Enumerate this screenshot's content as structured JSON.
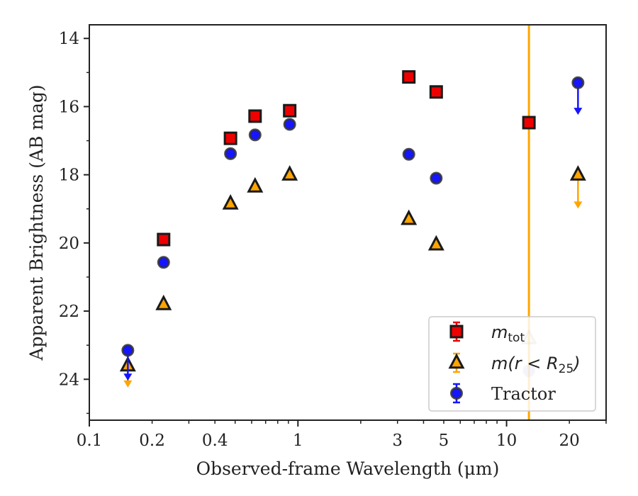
{
  "chart_data": {
    "type": "scatter",
    "xlabel": "Observed-frame Wavelength (μm)",
    "ylabel": "Apparent Brightness (AB mag)",
    "xscale": "log",
    "xlim": [
      0.1,
      30
    ],
    "ylim": [
      25.2,
      13.6
    ],
    "y_inverted": true,
    "x_ticks": [
      {
        "value": 0.1,
        "label": "0.1"
      },
      {
        "value": 0.2,
        "label": "0.2"
      },
      {
        "value": 0.4,
        "label": "0.4"
      },
      {
        "value": 1,
        "label": "1"
      },
      {
        "value": 3,
        "label": "3"
      },
      {
        "value": 5,
        "label": "5"
      },
      {
        "value": 10,
        "label": "10"
      },
      {
        "value": 20,
        "label": "20"
      }
    ],
    "y_ticks": [
      {
        "value": 14,
        "label": "14"
      },
      {
        "value": 16,
        "label": "16"
      },
      {
        "value": 18,
        "label": "18"
      },
      {
        "value": 20,
        "label": "20"
      },
      {
        "value": 22,
        "label": "22"
      },
      {
        "value": 24,
        "label": "24"
      }
    ],
    "vline": {
      "x": 12.8,
      "color": "#ffa500"
    },
    "legend": {
      "placement": "lower-right",
      "entries": [
        {
          "label_main": "m",
          "label_sub": "tot",
          "marker": "square"
        },
        {
          "label_main": "m(r < R",
          "label_sub": "25",
          "label_tail": ")",
          "marker": "triangle"
        },
        {
          "label_main": "Tractor",
          "marker": "circle"
        }
      ]
    },
    "series": [
      {
        "marker": "square",
        "color": "#ee0000",
        "edge": "#1a1a1a",
        "points": [
          {
            "x": 0.227,
            "y": 19.9
          },
          {
            "x": 0.475,
            "y": 16.93
          },
          {
            "x": 0.623,
            "y": 16.28
          },
          {
            "x": 0.913,
            "y": 16.12
          },
          {
            "x": 3.4,
            "y": 15.13
          },
          {
            "x": 4.6,
            "y": 15.57
          },
          {
            "x": 12.8,
            "y": 16.47
          }
        ]
      },
      {
        "marker": "triangle",
        "color": "#ffa500",
        "edge": "#1a1a1a",
        "points": [
          {
            "x": 0.153,
            "y": 23.6,
            "upper_limit_to": 24.2
          },
          {
            "x": 0.227,
            "y": 21.8
          },
          {
            "x": 0.475,
            "y": 18.85
          },
          {
            "x": 0.623,
            "y": 18.35
          },
          {
            "x": 0.913,
            "y": 18.0
          },
          {
            "x": 3.4,
            "y": 19.3
          },
          {
            "x": 4.6,
            "y": 20.05
          },
          {
            "x": 12.8,
            "y": 22.8,
            "faded": true
          },
          {
            "x": 22,
            "y": 18.0,
            "upper_limit_to": 18.95
          }
        ]
      },
      {
        "marker": "circle",
        "color": "#1515ff",
        "edge": "#333333",
        "points": [
          {
            "x": 0.153,
            "y": 23.15,
            "upper_limit_to": 24.0
          },
          {
            "x": 0.227,
            "y": 20.57
          },
          {
            "x": 0.475,
            "y": 17.38
          },
          {
            "x": 0.623,
            "y": 16.83
          },
          {
            "x": 0.913,
            "y": 16.52
          },
          {
            "x": 3.4,
            "y": 17.4
          },
          {
            "x": 4.6,
            "y": 18.1
          },
          {
            "x": 12.8,
            "y": 23.75,
            "faded": true
          },
          {
            "x": 22,
            "y": 15.3,
            "upper_limit_to": 16.2
          }
        ]
      }
    ]
  }
}
